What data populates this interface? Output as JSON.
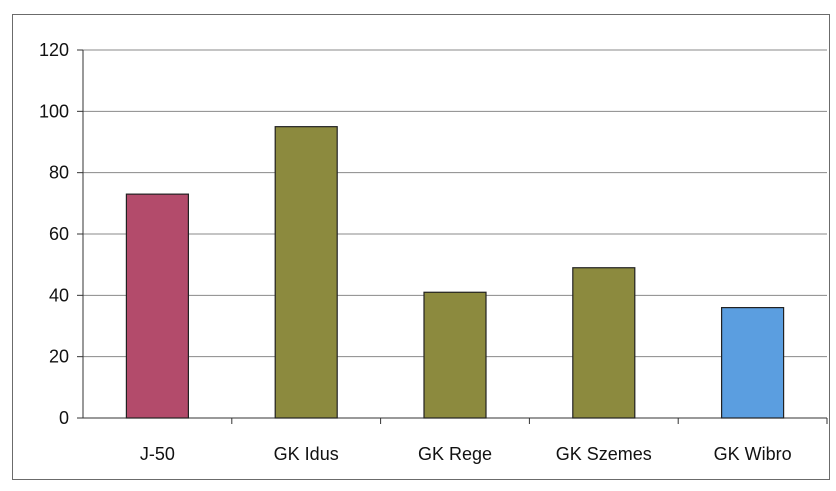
{
  "chart_data": {
    "type": "bar",
    "title": "",
    "xlabel": "",
    "ylabel": "",
    "categories": [
      "J-50",
      "GK Idus",
      "GK Rege",
      "GK Szemes",
      "GK Wibro"
    ],
    "values": [
      73,
      95,
      41,
      49,
      36
    ],
    "bar_colors": [
      "#b34b6b",
      "#8c8a3e",
      "#8c8a3e",
      "#8c8a3e",
      "#5b9ee0"
    ],
    "ylim": [
      0,
      120
    ],
    "yticks": [
      0,
      20,
      40,
      60,
      80,
      100,
      120
    ],
    "ytick_labels": [
      "0",
      "20",
      "40",
      "60",
      "80",
      "100",
      "120"
    ],
    "grid": true,
    "legend": "none"
  }
}
